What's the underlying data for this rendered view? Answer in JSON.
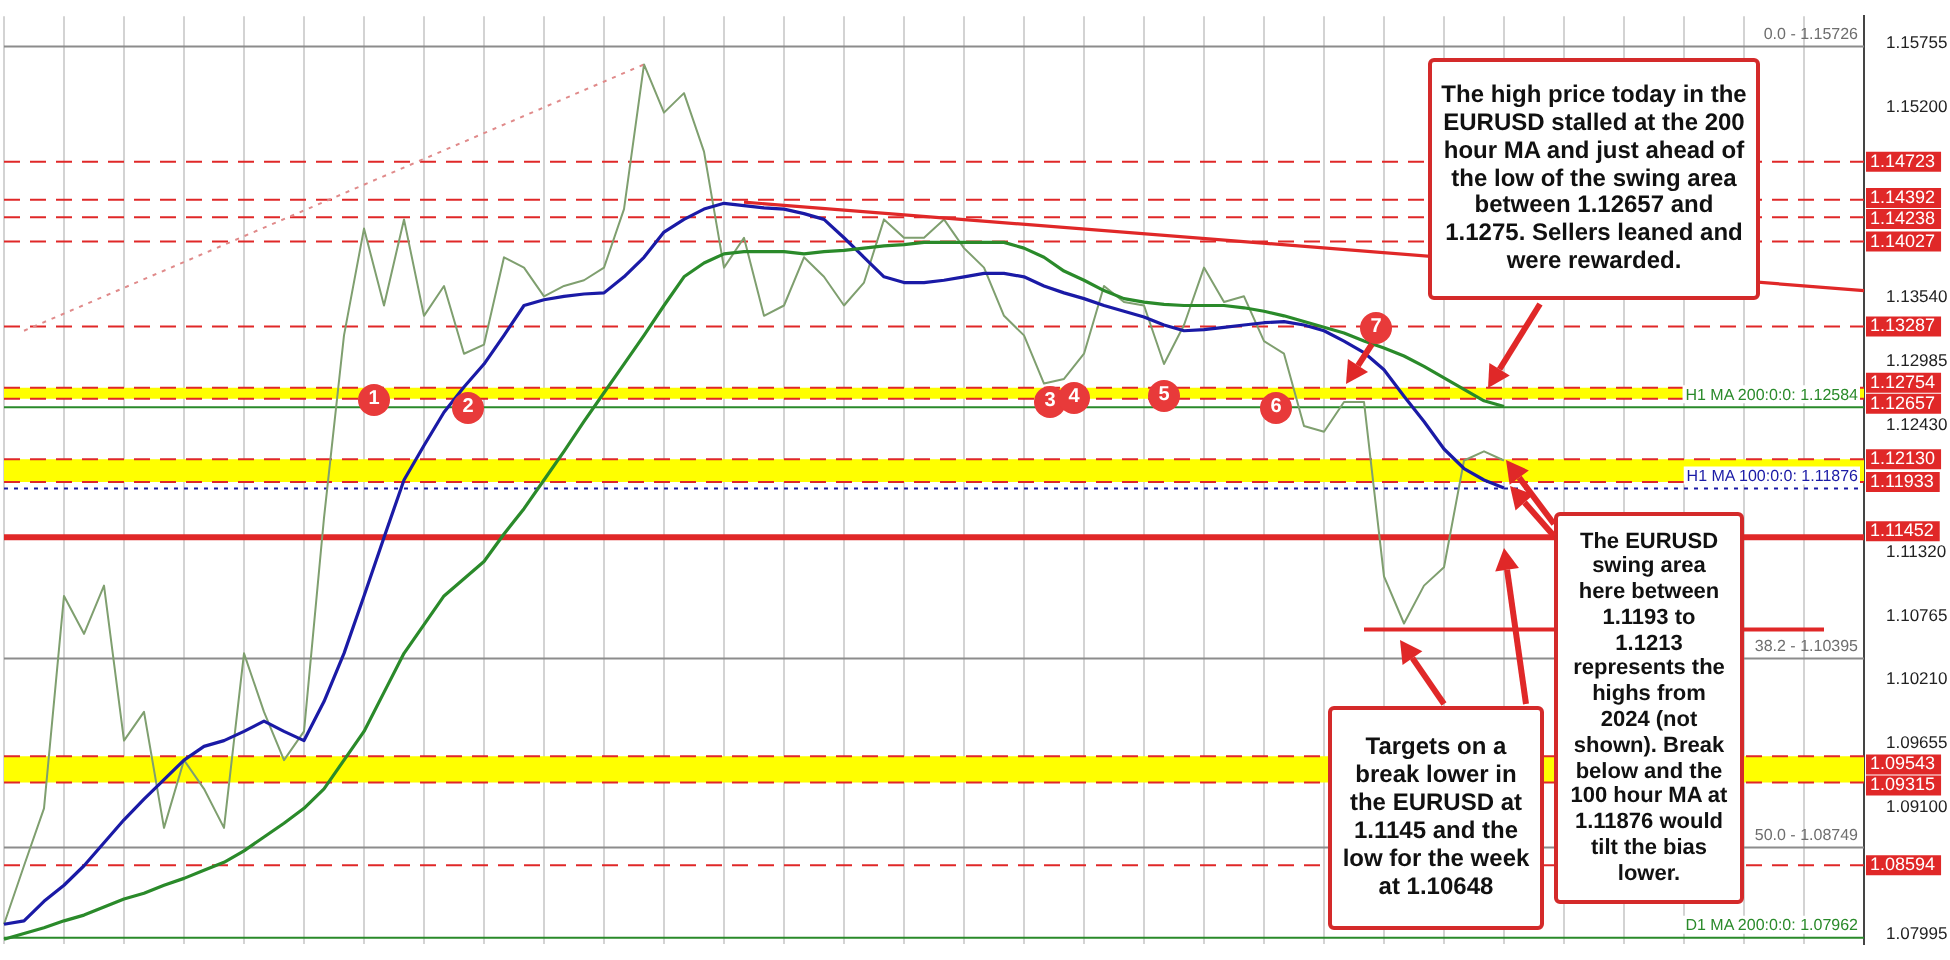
{
  "chart_data": {
    "type": "line",
    "categories": [
      null,
      null,
      null,
      null,
      null,
      null,
      null,
      null,
      null,
      null,
      null,
      null,
      null,
      null,
      null,
      null,
      null,
      null,
      null,
      null,
      null,
      null,
      null,
      null,
      null,
      null,
      null,
      null,
      null,
      null,
      null,
      null,
      null,
      null,
      null,
      null,
      null,
      null,
      null,
      null,
      null,
      null,
      null,
      null,
      null,
      null,
      null,
      null,
      null,
      null,
      null,
      null,
      null,
      null,
      null,
      null,
      null,
      null,
      null,
      null,
      null,
      null,
      null,
      null,
      null,
      null,
      null,
      null,
      null,
      null,
      null,
      null,
      null,
      null,
      null,
      null,
      null,
      null,
      null,
      null,
      null,
      null,
      null,
      null,
      null,
      null,
      null,
      null,
      null,
      null,
      null,
      null,
      null,
      null
    ],
    "series": [
      {
        "color": "#7f9f6f",
        "values": [
          1.0808,
          1.0859,
          1.0909,
          1.1094,
          1.1061,
          1.1103,
          1.0968,
          1.0993,
          1.0892,
          1.0951,
          1.0926,
          1.0892,
          1.1044,
          1.0993,
          1.0951,
          1.0976,
          1.1162,
          1.1321,
          1.1414,
          1.1347,
          1.1422,
          1.1338,
          1.1364,
          1.1305,
          1.1313,
          1.1389,
          1.138,
          1.1355,
          1.1364,
          1.1369,
          1.138,
          1.1431,
          1.1557,
          1.1515,
          1.1532,
          1.1481,
          1.138,
          1.1406,
          1.1338,
          1.1347,
          1.1389,
          1.1372,
          1.1347,
          1.1367,
          1.1422,
          1.1406,
          1.1406,
          1.1422,
          1.1397,
          1.138,
          1.1338,
          1.1321,
          1.1279,
          1.1283,
          1.1305,
          1.1364,
          1.135,
          1.1347,
          1.1296,
          1.133,
          1.138,
          1.135,
          1.1355,
          1.1316,
          1.1305,
          1.1242,
          1.1237,
          1.1263,
          1.1263,
          1.1111,
          1.107,
          1.1103,
          1.1119,
          1.1212,
          1.122,
          1.1212,
          null,
          null,
          null,
          null,
          null,
          null,
          null,
          null,
          null,
          null,
          null,
          null,
          null,
          null,
          null,
          null,
          null,
          null
        ]
      },
      {
        "color": "#1a1aa6",
        "values": [
          1.0808,
          1.0811,
          1.0828,
          1.0842,
          1.0859,
          1.0879,
          1.0899,
          1.0917,
          1.0934,
          1.0951,
          1.0963,
          1.0968,
          1.0976,
          1.0985,
          1.0976,
          1.0968,
          1.1002,
          1.1044,
          1.1094,
          1.1145,
          1.1195,
          1.1225,
          1.1254,
          1.1276,
          1.1296,
          1.1321,
          1.1347,
          1.1352,
          1.1355,
          1.1357,
          1.1358,
          1.1372,
          1.1389,
          1.1411,
          1.1422,
          1.1431,
          1.1436,
          1.1434,
          1.1432,
          1.1431,
          1.1427,
          1.1422,
          1.1406,
          1.1389,
          1.1372,
          1.1367,
          1.1367,
          1.1369,
          1.1372,
          1.1375,
          1.1375,
          1.1372,
          1.1364,
          1.1358,
          1.1353,
          1.1347,
          1.1342,
          1.1337,
          1.133,
          1.1325,
          1.1326,
          1.1328,
          1.133,
          1.1332,
          1.1333,
          1.133,
          1.1325,
          1.1316,
          1.1306,
          1.1291,
          1.1268,
          1.1246,
          1.1222,
          1.1205,
          1.1195,
          1.1188,
          null,
          null,
          null,
          null,
          null,
          null,
          null,
          null,
          null,
          null,
          null,
          null,
          null,
          null,
          null,
          null,
          null,
          null
        ]
      },
      {
        "color": "#2a8a2a",
        "values": [
          1.0795,
          1.08,
          1.0805,
          1.0811,
          1.0816,
          1.0823,
          1.083,
          1.0835,
          1.0842,
          1.0848,
          1.0855,
          1.0862,
          1.0872,
          1.0884,
          1.0896,
          1.0909,
          1.0926,
          1.0951,
          1.0976,
          1.101,
          1.1044,
          1.1069,
          1.1094,
          1.1109,
          1.1124,
          1.1148,
          1.117,
          1.1195,
          1.122,
          1.1246,
          1.1271,
          1.1296,
          1.1321,
          1.1347,
          1.1372,
          1.1384,
          1.1392,
          1.1394,
          1.1394,
          1.1394,
          1.1392,
          1.1394,
          1.1395,
          1.1397,
          1.1399,
          1.14,
          1.1402,
          1.1402,
          1.1402,
          1.1402,
          1.1402,
          1.1397,
          1.1389,
          1.1377,
          1.1369,
          1.136,
          1.1353,
          1.135,
          1.1348,
          1.1347,
          1.1347,
          1.1347,
          1.1345,
          1.1342,
          1.1338,
          1.1333,
          1.1328,
          1.1323,
          1.1316,
          1.131,
          1.1303,
          1.1294,
          1.1284,
          1.1274,
          1.1264,
          1.1259,
          null,
          null,
          null,
          null,
          null,
          null,
          null,
          null,
          null,
          null,
          null,
          null,
          null,
          null,
          null,
          null,
          null,
          null
        ]
      },
      {
        "color": "#e02828",
        "values": [
          null,
          null,
          null,
          null,
          null,
          null,
          null,
          null,
          null,
          null,
          null,
          null,
          null,
          null,
          null,
          null,
          null,
          null,
          null,
          null,
          null,
          null,
          null,
          null,
          null,
          null,
          null,
          null,
          null,
          null,
          null,
          null,
          null,
          null,
          null,
          null,
          null,
          1.1437,
          null,
          null,
          null,
          null,
          null,
          null,
          null,
          null,
          null,
          null,
          null,
          null,
          null,
          null,
          null,
          null,
          null,
          null,
          null,
          null,
          null,
          null,
          null,
          null,
          null,
          null,
          null,
          null,
          null,
          null,
          null,
          null,
          null,
          null,
          null,
          null,
          null,
          null,
          null,
          null,
          null,
          null,
          null,
          null,
          null,
          null,
          null,
          null,
          null,
          null,
          null,
          null,
          null,
          null,
          null,
          1.136
        ]
      },
      {
        "color": "#e08a8a",
        "line_style": "dotted",
        "values": [
          null,
          1.1325,
          null,
          null,
          null,
          null,
          null,
          null,
          null,
          null,
          null,
          null,
          null,
          null,
          null,
          null,
          null,
          null,
          null,
          null,
          null,
          null,
          null,
          null,
          null,
          null,
          null,
          null,
          null,
          null,
          null,
          null,
          1.1557,
          null,
          null,
          null,
          null,
          null,
          null,
          null,
          null,
          null,
          null,
          null,
          null,
          null,
          null,
          null,
          null,
          null,
          null,
          null,
          null,
          null,
          null,
          null,
          null,
          null,
          null,
          null,
          null,
          null,
          null,
          null,
          null,
          null,
          null,
          null,
          null,
          null,
          null,
          null,
          null,
          null,
          null,
          null,
          null,
          null,
          null,
          null,
          null,
          null,
          null,
          null,
          null,
          null,
          null,
          null,
          null,
          null,
          null,
          null,
          null,
          null
        ]
      },
      {
        "color": "#e02828",
        "values": [
          null,
          null,
          null,
          null,
          null,
          null,
          null,
          null,
          null,
          null,
          null,
          null,
          null,
          null,
          null,
          null,
          null,
          null,
          null,
          null,
          null,
          null,
          null,
          null,
          null,
          null,
          null,
          null,
          null,
          null,
          null,
          null,
          null,
          null,
          null,
          null,
          null,
          null,
          null,
          null,
          null,
          null,
          null,
          null,
          null,
          null,
          null,
          null,
          null,
          null,
          null,
          null,
          null,
          null,
          null,
          null,
          null,
          null,
          null,
          null,
          null,
          null,
          null,
          null,
          null,
          null,
          null,
          null,
          1.10648,
          null,
          null,
          null,
          null,
          null,
          null,
          null,
          null,
          null,
          null,
          null,
          null,
          null,
          null,
          null,
          null,
          null,
          null,
          null,
          null,
          null,
          null,
          1.10648,
          null,
          null
        ]
      }
    ],
    "ylim": [
      1.0791,
      1.1599
    ],
    "yticks": [
      1.07995,
      {
        "value": 1.091,
        "label": "1.09100"
      },
      1.09655,
      {
        "value": 1.1021,
        "label": "1.10210"
      },
      1.10765,
      {
        "value": 1.1132,
        "label": "1.11320"
      },
      {
        "value": 1.1243,
        "label": "1.12430"
      },
      1.12985,
      {
        "value": 1.1354,
        "label": "1.13540"
      },
      {
        "value": 1.152,
        "label": "1.15200"
      },
      1.15755
    ],
    "tick_labels": "y",
    "grid": "x",
    "marker": "none",
    "line_style": "solid",
    "legend": false,
    "bands": [
      {
        "axis": "y",
        "from": 1.12657,
        "to": 1.12754,
        "color": "#ffff00"
      },
      {
        "axis": "y",
        "from": 1.11933,
        "to": 1.1213,
        "color": "#ffff00"
      },
      {
        "axis": "y",
        "from": 1.09315,
        "to": 1.09543,
        "color": "#ffff00"
      }
    ],
    "ref_lines": [
      {
        "axis": "y",
        "value": 1.15726,
        "color": "#8c8c8c",
        "line_style": "solid"
      },
      {
        "axis": "y",
        "value": 1.14723,
        "label": "1.14723",
        "color": "#e02828",
        "line_style": "dashed"
      },
      {
        "axis": "y",
        "value": 1.14392,
        "label": "1.14392",
        "color": "#e02828",
        "line_style": "dashed"
      },
      {
        "axis": "y",
        "value": 1.14238,
        "label": "1.14238",
        "color": "#e02828",
        "line_style": "dashed"
      },
      {
        "axis": "y",
        "value": 1.14027,
        "label": "1.14027",
        "color": "#e02828",
        "line_style": "dashed"
      },
      {
        "axis": "y",
        "value": 1.13287,
        "label": "1.13287",
        "color": "#e02828",
        "line_style": "dashed"
      },
      {
        "axis": "y",
        "value": 1.12754,
        "label": "1.12754",
        "color": "#e02828",
        "line_style": "dashed"
      },
      {
        "axis": "y",
        "value": 1.12657,
        "label": "1.12657",
        "color": "#e02828",
        "line_style": "dashed"
      },
      {
        "axis": "y",
        "value": 1.12584,
        "label": "H1 MA 200:0:0: 1.12584",
        "color": "#2a8a2a",
        "line_style": "solid"
      },
      {
        "axis": "y",
        "value": 1.1213,
        "label": "1.12130",
        "color": "#e02828",
        "line_style": "dashed"
      },
      {
        "axis": "y",
        "value": 1.11933,
        "label": "1.11933",
        "color": "#e02828",
        "line_style": "dashed"
      },
      {
        "axis": "y",
        "value": 1.11876,
        "label": "H1 MA 100:0:0: 1.11876",
        "color": "#1a1aa6",
        "line_style": "dotted"
      },
      {
        "axis": "y",
        "value": 1.11452,
        "label": "1.11452",
        "color": "#e02828",
        "line_style": "solid"
      },
      {
        "axis": "y",
        "value": 1.10395,
        "color": "#8c8c8c",
        "line_style": "solid"
      },
      {
        "axis": "y",
        "value": 1.09543,
        "label": "1.09543",
        "color": "#e02828",
        "line_style": "dashed"
      },
      {
        "axis": "y",
        "value": 1.09315,
        "label": "1.09315",
        "color": "#e02828",
        "line_style": "dashed"
      },
      {
        "axis": "y",
        "value": 1.08749,
        "color": "#8c8c8c",
        "line_style": "solid"
      },
      {
        "axis": "y",
        "value": 1.08594,
        "label": "1.08594",
        "color": "#e02828",
        "line_style": "dashed"
      },
      {
        "axis": "y",
        "value": 1.07962,
        "label": "D1 MA 200:0:0: 1.07962",
        "color": "#2a8a2a",
        "line_style": "solid"
      }
    ],
    "annotations": [
      "1",
      "2",
      "3",
      "4",
      "5",
      "6",
      "7",
      "The high price today in the EURUSD stalled at the 200 hour MA and just ahead of the low of the swing area between 1.12657 and 1.1275. Sellers leaned and were rewarded.",
      "The EURUSD swing area here between 1.1193 to 1.1213 represents the highs from 2024 (not shown).  Break below and the 100 hour MA at 1.11876 would tilt the bias lower.",
      "Targets on a break lower in the EURUSD at 1.1145 and the low for the week at 1.10648",
      {
        "text": "0.0 - 1.15726",
        "y": 1.15726
      },
      {
        "text": "38.2 - 1.10395",
        "y": 1.10395
      },
      {
        "text": "50.0 - 1.08749",
        "y": 1.08749
      }
    ]
  }
}
